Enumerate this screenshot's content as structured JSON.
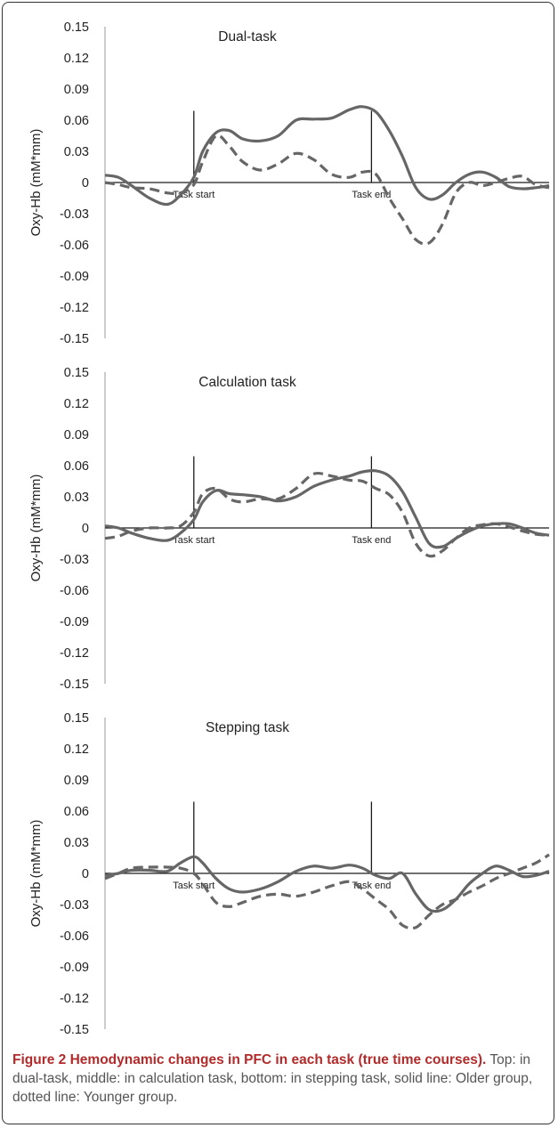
{
  "chart_data": [
    {
      "type": "line",
      "title": "Dual-task",
      "ylabel": "Oxy-Hb (mM*mm)",
      "ylim": [
        -0.15,
        0.15
      ],
      "y_ticks": [
        "0.15",
        "0.12",
        "0.09",
        "0.06",
        "0.03",
        "0",
        "-0.03",
        "-0.06",
        "-0.09",
        "-0.12",
        "-0.15"
      ],
      "grid": false,
      "markers": [
        {
          "label": "Task start",
          "x": 0.2
        },
        {
          "label": "Task end",
          "x": 0.6
        }
      ],
      "series": [
        {
          "style": "solid",
          "x": [
            0,
            0.03,
            0.06,
            0.1,
            0.14,
            0.17,
            0.2,
            0.22,
            0.25,
            0.28,
            0.31,
            0.35,
            0.39,
            0.43,
            0.47,
            0.51,
            0.55,
            0.58,
            0.61,
            0.64,
            0.67,
            0.7,
            0.73,
            0.76,
            0.79,
            0.82,
            0.85,
            0.88,
            0.91,
            0.94,
            0.97,
            1.0
          ],
          "y": [
            0.007,
            0.005,
            -0.003,
            -0.015,
            -0.021,
            -0.012,
            0.005,
            0.03,
            0.048,
            0.05,
            0.042,
            0.04,
            0.045,
            0.06,
            0.061,
            0.062,
            0.07,
            0.073,
            0.068,
            0.05,
            0.025,
            -0.005,
            -0.016,
            -0.012,
            0.0,
            0.008,
            0.01,
            0.005,
            -0.004,
            -0.006,
            -0.005,
            -0.003
          ]
        },
        {
          "style": "dashed",
          "x": [
            0,
            0.03,
            0.06,
            0.1,
            0.14,
            0.17,
            0.2,
            0.22,
            0.25,
            0.28,
            0.31,
            0.35,
            0.39,
            0.43,
            0.47,
            0.51,
            0.55,
            0.58,
            0.61,
            0.64,
            0.67,
            0.7,
            0.73,
            0.76,
            0.79,
            0.82,
            0.85,
            0.88,
            0.91,
            0.94,
            0.97,
            1.0
          ],
          "y": [
            0.0,
            -0.002,
            -0.005,
            -0.006,
            -0.01,
            -0.01,
            -0.002,
            0.02,
            0.045,
            0.035,
            0.02,
            0.012,
            0.018,
            0.028,
            0.022,
            0.008,
            0.005,
            0.01,
            0.008,
            -0.015,
            -0.035,
            -0.055,
            -0.058,
            -0.04,
            -0.01,
            0.0,
            -0.003,
            0.0,
            0.004,
            0.006,
            -0.002,
            -0.005
          ]
        }
      ]
    },
    {
      "type": "line",
      "title": "Calculation task",
      "ylabel": "Oxy-Hb (mM*mm)",
      "ylim": [
        -0.15,
        0.15
      ],
      "y_ticks": [
        "0.15",
        "0.12",
        "0.09",
        "0.06",
        "0.03",
        "0",
        "-0.03",
        "-0.06",
        "-0.09",
        "-0.12",
        "-0.15"
      ],
      "grid": false,
      "markers": [
        {
          "label": "Task start",
          "x": 0.2
        },
        {
          "label": "Task end",
          "x": 0.6
        }
      ],
      "series": [
        {
          "style": "solid",
          "x": [
            0,
            0.03,
            0.06,
            0.1,
            0.14,
            0.17,
            0.2,
            0.22,
            0.25,
            0.28,
            0.31,
            0.35,
            0.39,
            0.43,
            0.47,
            0.51,
            0.55,
            0.58,
            0.61,
            0.64,
            0.67,
            0.7,
            0.73,
            0.76,
            0.79,
            0.82,
            0.85,
            0.88,
            0.91,
            0.94,
            0.97,
            1.0
          ],
          "y": [
            0.002,
            0.0,
            -0.005,
            -0.01,
            -0.012,
            -0.005,
            0.008,
            0.025,
            0.036,
            0.033,
            0.032,
            0.03,
            0.026,
            0.03,
            0.04,
            0.046,
            0.05,
            0.054,
            0.055,
            0.05,
            0.035,
            0.01,
            -0.015,
            -0.018,
            -0.01,
            -0.003,
            0.002,
            0.004,
            0.004,
            0.0,
            -0.005,
            -0.007
          ]
        },
        {
          "style": "dashed",
          "x": [
            0,
            0.03,
            0.06,
            0.1,
            0.14,
            0.17,
            0.2,
            0.22,
            0.25,
            0.28,
            0.31,
            0.35,
            0.39,
            0.43,
            0.47,
            0.51,
            0.55,
            0.58,
            0.61,
            0.64,
            0.67,
            0.7,
            0.73,
            0.76,
            0.79,
            0.82,
            0.85,
            0.88,
            0.91,
            0.94,
            0.97,
            1.0
          ],
          "y": [
            -0.01,
            -0.008,
            -0.003,
            0.0,
            0.0,
            0.002,
            0.015,
            0.033,
            0.038,
            0.028,
            0.025,
            0.028,
            0.028,
            0.038,
            0.052,
            0.05,
            0.046,
            0.045,
            0.038,
            0.032,
            0.015,
            -0.015,
            -0.027,
            -0.022,
            -0.01,
            0.0,
            0.003,
            0.004,
            0.001,
            -0.003,
            -0.006,
            -0.007
          ]
        }
      ]
    },
    {
      "type": "line",
      "title": "Stepping task",
      "ylabel": "Oxy-Hb (mM*mm)",
      "ylim": [
        -0.15,
        0.15
      ],
      "y_ticks": [
        "0.15",
        "0.12",
        "0.09",
        "0.06",
        "0.03",
        "0",
        "-0.03",
        "-0.06",
        "-0.09",
        "-0.12",
        "-0.15"
      ],
      "grid": false,
      "markers": [
        {
          "label": "Task start",
          "x": 0.2
        },
        {
          "label": "Task end",
          "x": 0.6
        }
      ],
      "series": [
        {
          "style": "solid",
          "x": [
            0,
            0.03,
            0.06,
            0.1,
            0.14,
            0.17,
            0.2,
            0.22,
            0.25,
            0.28,
            0.31,
            0.35,
            0.39,
            0.43,
            0.47,
            0.51,
            0.55,
            0.58,
            0.61,
            0.64,
            0.67,
            0.7,
            0.73,
            0.76,
            0.79,
            0.82,
            0.85,
            0.88,
            0.91,
            0.94,
            0.97,
            1.0
          ],
          "y": [
            -0.002,
            0.0,
            0.003,
            0.003,
            0.002,
            0.01,
            0.016,
            0.01,
            -0.005,
            -0.015,
            -0.018,
            -0.015,
            -0.008,
            0.002,
            0.007,
            0.005,
            0.008,
            0.005,
            -0.002,
            -0.005,
            0.0,
            -0.02,
            -0.035,
            -0.035,
            -0.025,
            -0.01,
            0.0,
            0.007,
            0.003,
            -0.003,
            -0.002,
            0.002
          ]
        },
        {
          "style": "dashed",
          "x": [
            0,
            0.03,
            0.06,
            0.1,
            0.14,
            0.17,
            0.2,
            0.22,
            0.25,
            0.28,
            0.31,
            0.35,
            0.39,
            0.43,
            0.47,
            0.51,
            0.55,
            0.58,
            0.61,
            0.64,
            0.67,
            0.7,
            0.73,
            0.76,
            0.79,
            0.82,
            0.85,
            0.88,
            0.91,
            0.94,
            0.97,
            1.0
          ],
          "y": [
            -0.005,
            0.0,
            0.005,
            0.006,
            0.006,
            0.005,
            0.0,
            -0.01,
            -0.028,
            -0.032,
            -0.028,
            -0.022,
            -0.02,
            -0.022,
            -0.018,
            -0.012,
            -0.008,
            -0.015,
            -0.025,
            -0.035,
            -0.05,
            -0.052,
            -0.04,
            -0.03,
            -0.025,
            -0.018,
            -0.012,
            -0.005,
            0.0,
            0.005,
            0.01,
            0.018
          ]
        }
      ]
    }
  ],
  "caption": {
    "head": "Figure 2 Hemodynamic changes in PFC in each task (true time courses).",
    "body": " Top: in dual-task, middle: in calculation task, bottom: in stepping task, solid line: Older group, dotted line: Younger group."
  },
  "colors": {
    "line": "#666666",
    "axis": "#1a1a1a",
    "caption_head": "#b22a2a",
    "caption_body": "#555555"
  }
}
